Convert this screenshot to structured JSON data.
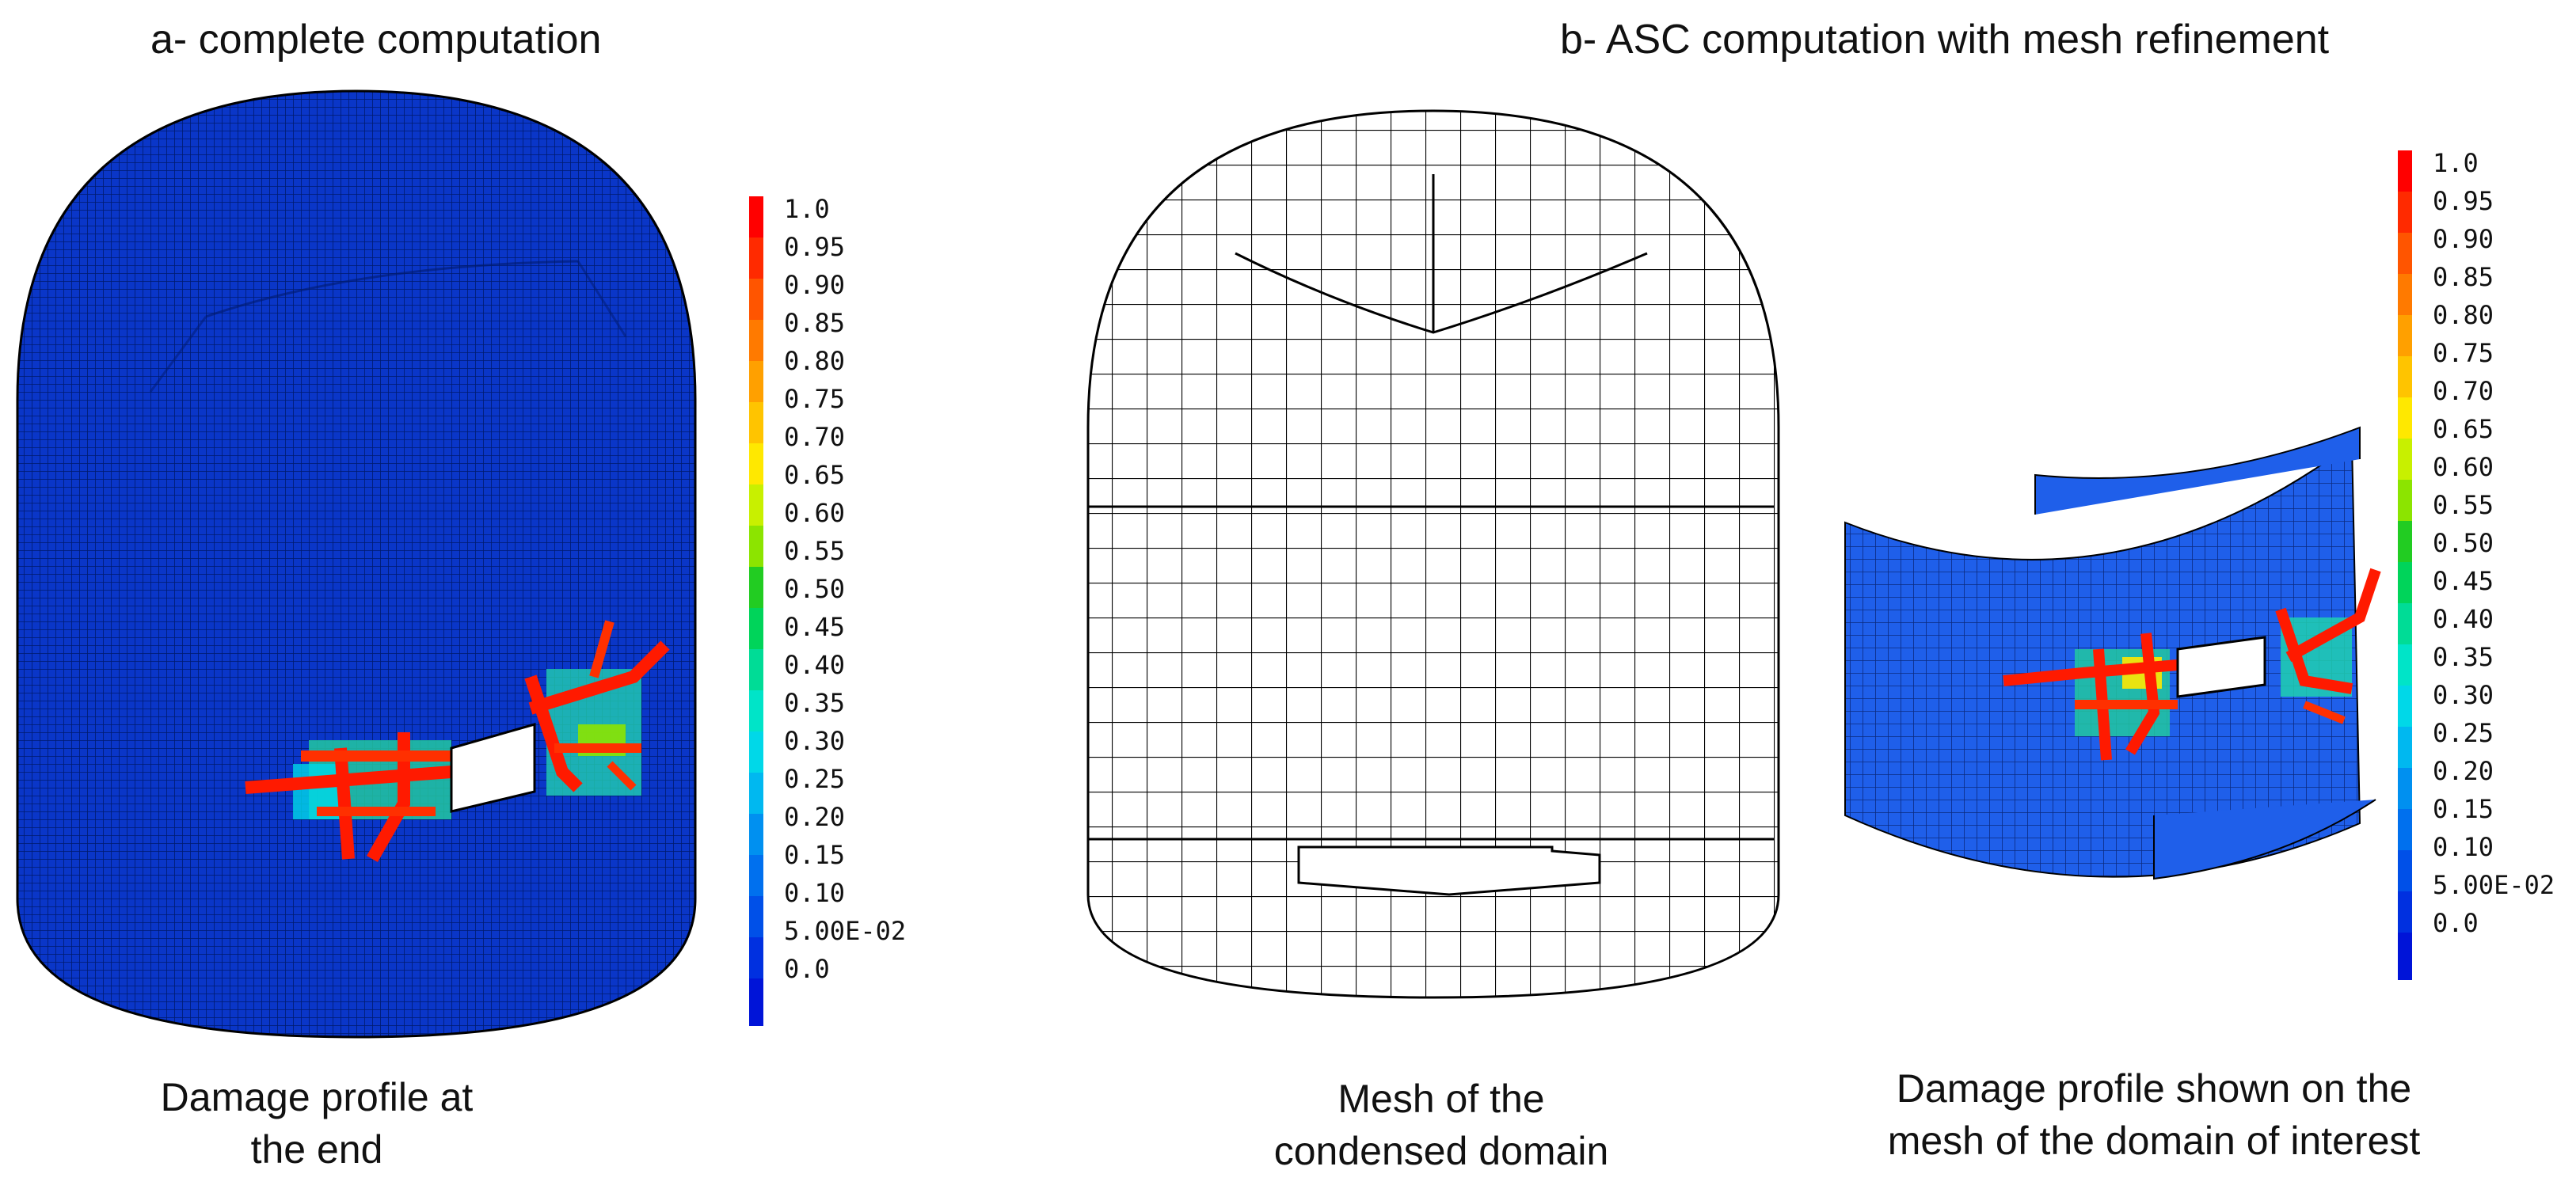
{
  "panel_a": {
    "title": "a- complete computation",
    "caption_line1": "Damage profile at",
    "caption_line2": "the end"
  },
  "panel_b": {
    "title": "b- ASC computation with mesh refinement",
    "mesh_caption_line1": "Mesh of the",
    "mesh_caption_line2": "condensed domain",
    "damage_caption_line1": "Damage profile shown on the",
    "damage_caption_line2": "mesh of the domain of interest"
  },
  "color_scale": {
    "labels": [
      "1.0",
      "0.95",
      "0.90",
      "0.85",
      "0.80",
      "0.75",
      "0.70",
      "0.65",
      "0.60",
      "0.55",
      "0.50",
      "0.45",
      "0.40",
      "0.35",
      "0.30",
      "0.25",
      "0.20",
      "0.15",
      "0.10",
      "5.00E-02",
      "0.0"
    ],
    "colors": [
      "#ff0000",
      "#ff2a00",
      "#ff5500",
      "#ff7a00",
      "#ffa000",
      "#ffc400",
      "#ffe800",
      "#c8f000",
      "#8ce400",
      "#22cc22",
      "#00d45a",
      "#00dc96",
      "#00e4c8",
      "#00d8e8",
      "#00b8f0",
      "#0090f0",
      "#0070ee",
      "#0050e8",
      "#0030e0",
      "#0014d8"
    ]
  },
  "mesh_colors": {
    "solid_blue": "#0a36c8",
    "panel_blue": "#1f5fea",
    "mesh_line": "#000000"
  }
}
